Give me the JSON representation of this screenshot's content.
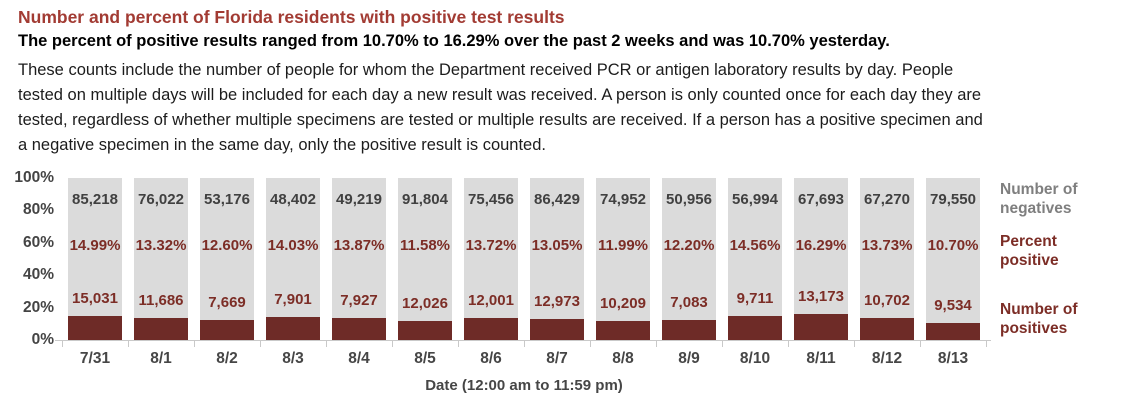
{
  "header": {
    "title": "Number and percent of Florida residents with positive test results",
    "subtitle": "The percent of positive results ranged from 10.70% to 16.29% over the past 2 weeks and was 10.70% yesterday.",
    "description_lines": [
      "These counts include the number of people for whom the Department received PCR or antigen laboratory results by day. People",
      "tested on multiple days will be included for each day a new result was received. A person is only counted once for each day they are",
      "tested, regardless of whether multiple specimens are tested or multiple results are received. If a person has a positive specimen and",
      "a negative specimen in the same day, only the positive result is counted."
    ]
  },
  "chart_data": {
    "type": "bar",
    "variant": "100-percent-stacked-column",
    "title": "Number and percent of Florida residents with positive test results",
    "xlabel": "Date (12:00 am to 11:59 pm)",
    "ylabel": "",
    "ylim": [
      0,
      100
    ],
    "y_tick_labels": [
      "100%",
      "80%",
      "60%",
      "40%",
      "20%",
      "0%"
    ],
    "grid": false,
    "legend_position": "right",
    "categories": [
      "7/31",
      "8/1",
      "8/2",
      "8/3",
      "8/4",
      "8/5",
      "8/6",
      "8/7",
      "8/8",
      "8/9",
      "8/10",
      "8/11",
      "8/12",
      "8/13"
    ],
    "series": [
      {
        "name": "Number of positives",
        "color": "#6E2B27",
        "values": [
          15031,
          11686,
          7669,
          7901,
          7927,
          12026,
          12001,
          12973,
          10209,
          7083,
          9711,
          13173,
          10702,
          9534
        ],
        "labels": [
          "15,031",
          "11,686",
          "7,669",
          "7,901",
          "7,927",
          "12,026",
          "12,001",
          "12,973",
          "10,209",
          "7,083",
          "9,711",
          "13,173",
          "10,702",
          "9,534"
        ]
      },
      {
        "name": "Number of negatives",
        "color": "#DBDBDB",
        "values": [
          85218,
          76022,
          53176,
          48402,
          49219,
          91804,
          75456,
          86429,
          74952,
          50956,
          56994,
          67693,
          67270,
          79550
        ],
        "labels": [
          "85,218",
          "76,022",
          "53,176",
          "48,402",
          "49,219",
          "91,804",
          "75,456",
          "86,429",
          "74,952",
          "50,956",
          "56,994",
          "67,693",
          "67,270",
          "79,550"
        ]
      }
    ],
    "percent_positive": {
      "name": "Percent positive",
      "values": [
        14.99,
        13.32,
        12.6,
        14.03,
        13.87,
        11.58,
        13.72,
        13.05,
        11.99,
        12.2,
        14.56,
        16.29,
        13.73,
        10.7
      ],
      "labels": [
        "14.99%",
        "13.32%",
        "12.60%",
        "14.03%",
        "13.87%",
        "11.58%",
        "13.72%",
        "13.05%",
        "11.99%",
        "12.20%",
        "14.56%",
        "16.29%",
        "13.73%",
        "10.70%"
      ]
    },
    "annotations": [
      {
        "text": "Number of negatives",
        "color": "#7F7F7F"
      },
      {
        "text": "Percent positive",
        "color": "#7C2D26"
      },
      {
        "text": "Number of positives",
        "color": "#7C2D26"
      }
    ]
  },
  "colors": {
    "title_red": "#A23B33",
    "bar_positive": "#6E2B27",
    "bar_negative": "#DBDBDB",
    "maroon_text": "#7C2D26",
    "gray_legend_text": "#7F7F7F",
    "axis_text": "#464646",
    "axis_line": "#C9C9C9"
  }
}
